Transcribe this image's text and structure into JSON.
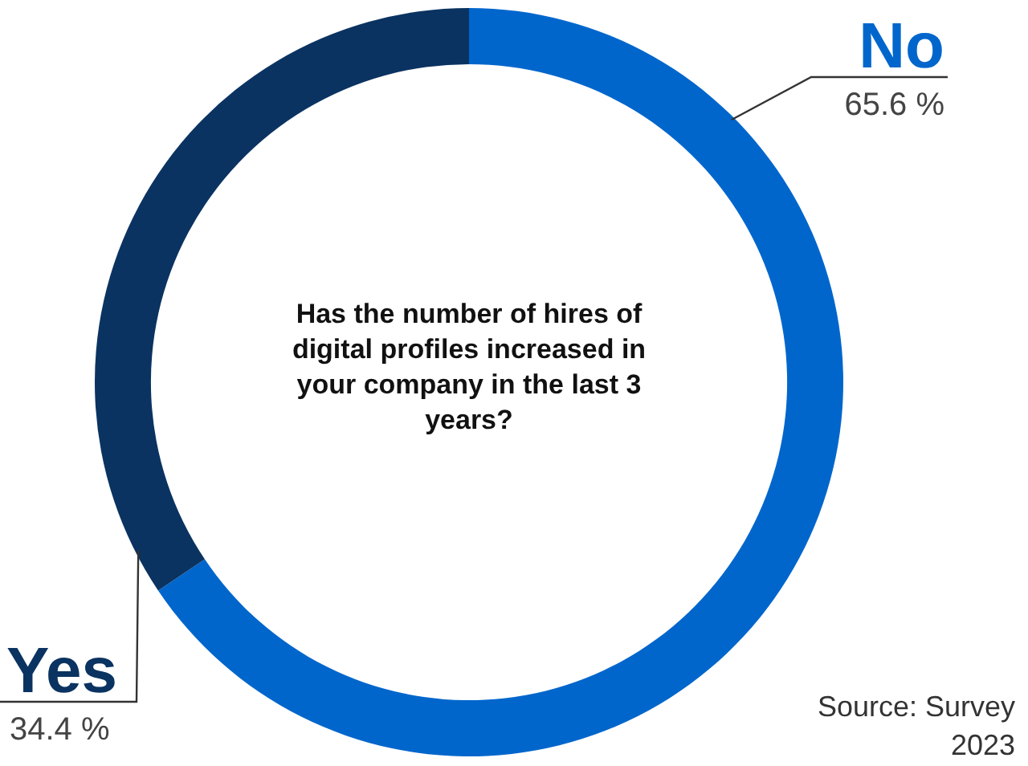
{
  "chart_data": {
    "type": "donut",
    "title": "Has the number of hires of digital profiles increased in your company in the last 3 years?",
    "categories": [
      "No",
      "Yes"
    ],
    "values": [
      65.6,
      34.4
    ],
    "value_labels": [
      "65.6 %",
      "34.4 %"
    ],
    "colors": [
      "#0066cc",
      "#0a3361"
    ],
    "annotations": [
      "Source: Survey 2023"
    ],
    "legend": false
  }
}
